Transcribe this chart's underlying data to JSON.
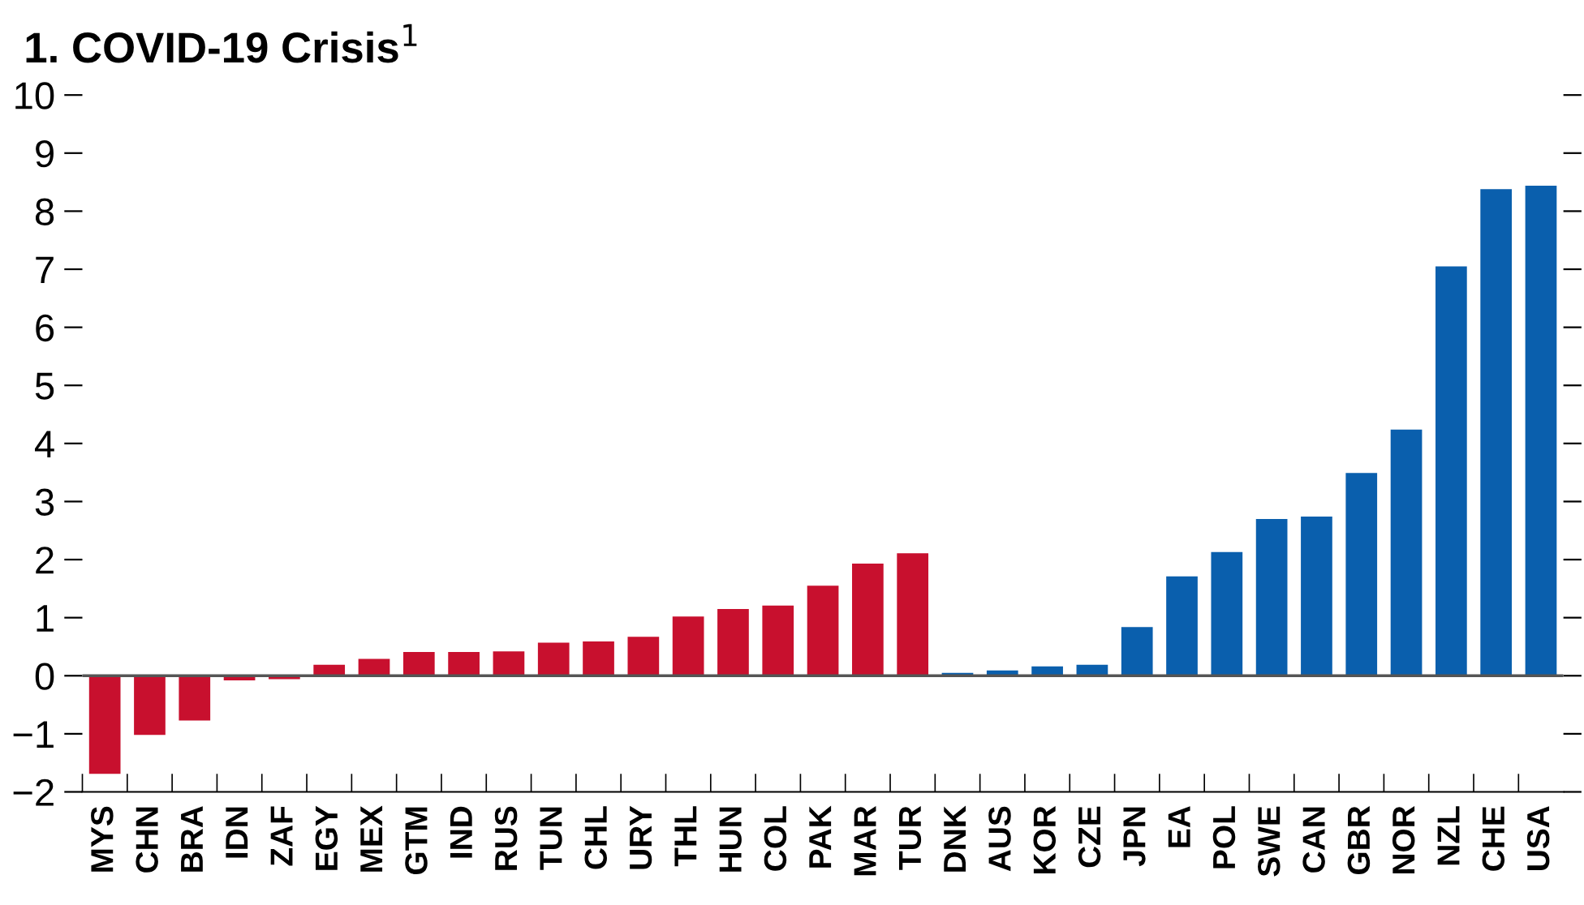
{
  "chart_data": {
    "type": "bar",
    "title": "1. COVID-19 Crisis$^{1}$",
    "categories": [
      "MYS",
      "CHN",
      "BRA",
      "IDN",
      "ZAF",
      "EGY",
      "MEX",
      "GTM",
      "IND",
      "RUS",
      "TUN",
      "CHL",
      "URY",
      "THL",
      "HUN",
      "COL",
      "PAK",
      "MAR",
      "TUR",
      "DNK",
      "AUS",
      "KOR",
      "CZE",
      "JPN",
      "EA",
      "POL",
      "SWE",
      "CAN",
      "GBR",
      "NOR",
      "NZL",
      "CHE",
      "USA"
    ],
    "values": [
      -1.69,
      -1.02,
      -0.77,
      -0.08,
      -0.06,
      0.19,
      0.29,
      0.41,
      0.41,
      0.42,
      0.57,
      0.59,
      0.67,
      1.02,
      1.15,
      1.21,
      1.55,
      1.93,
      2.11,
      0.05,
      0.09,
      0.16,
      0.19,
      0.84,
      1.71,
      2.13,
      2.7,
      2.74,
      3.49,
      4.24,
      7.05,
      8.38,
      8.44
    ],
    "colors": [
      "#c8102e",
      "#c8102e",
      "#c8102e",
      "#c8102e",
      "#c8102e",
      "#c8102e",
      "#c8102e",
      "#c8102e",
      "#c8102e",
      "#c8102e",
      "#c8102e",
      "#c8102e",
      "#c8102e",
      "#c8102e",
      "#c8102e",
      "#c8102e",
      "#c8102e",
      "#c8102e",
      "#c8102e",
      "#0a5fad",
      "#0a5fad",
      "#0a5fad",
      "#0a5fad",
      "#0a5fad",
      "#0a5fad",
      "#0a5fad",
      "#0a5fad",
      "#0a5fad",
      "#0a5fad",
      "#0a5fad",
      "#0a5fad",
      "#0a5fad",
      "#0a5fad"
    ],
    "ylim": [
      -2,
      10
    ],
    "yticks": [
      {
        "value": -2,
        "label": "−2"
      },
      {
        "value": -1,
        "label": "−1"
      },
      0,
      1,
      2,
      3,
      4,
      5,
      6,
      7,
      8,
      9,
      10
    ],
    "ref_lines": [
      {
        "axis": "y",
        "value": 0,
        "color": "#555555"
      }
    ],
    "grid": false,
    "legend": false
  }
}
